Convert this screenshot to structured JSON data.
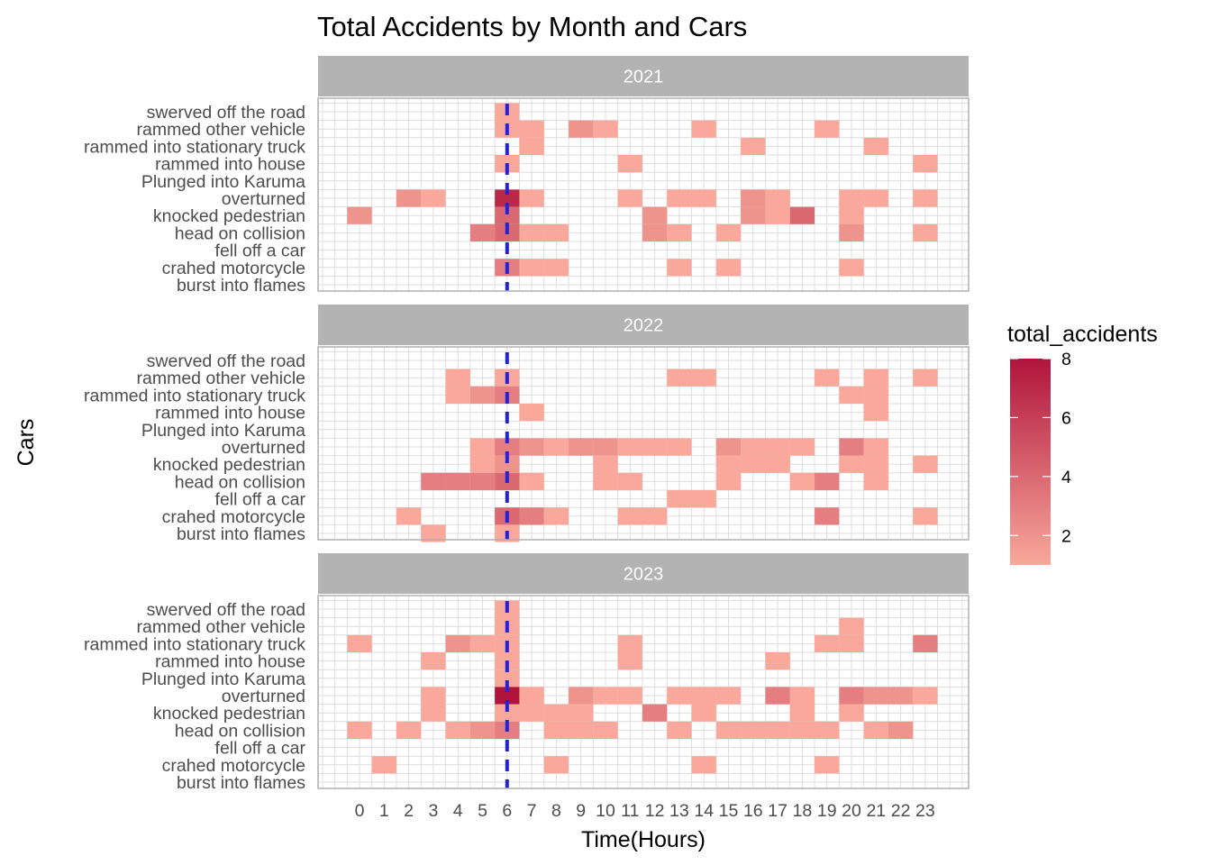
{
  "chart_data": {
    "type": "heatmap",
    "title": "Total Accidents by Month and Cars",
    "xlabel": "Time(Hours)",
    "ylabel": "Cars",
    "x_ticks": [
      "0",
      "1",
      "2",
      "3",
      "4",
      "5",
      "6",
      "7",
      "8",
      "9",
      "10",
      "11",
      "12",
      "13",
      "14",
      "15",
      "16",
      "17",
      "18",
      "19",
      "20",
      "21",
      "22",
      "23"
    ],
    "y_categories": [
      "swerved off the road",
      "rammed other vehicle",
      "rammed into stationary  truck",
      "rammed into house",
      "Plunged into Karuma",
      "overturned",
      "knocked pedestrian",
      "head on collision",
      "fell off a car",
      "crahed motorcycle",
      "burst into flames"
    ],
    "reference_line": {
      "x": 6,
      "color": "#2222dd",
      "style": "dashed"
    },
    "legend": {
      "title": "total_accidents",
      "ticks": [
        2,
        4,
        6,
        8
      ],
      "min": 1,
      "max": 8,
      "color_low": "#f9a89b",
      "color_high": "#b0143c"
    },
    "grid": true,
    "panels": [
      {
        "facet": "2021",
        "cells": [
          {
            "y": "swerved off the road",
            "x": 6,
            "value": 1
          },
          {
            "y": "rammed other vehicle",
            "x": 6,
            "value": 1
          },
          {
            "y": "rammed other vehicle",
            "x": 7,
            "value": 1
          },
          {
            "y": "rammed other vehicle",
            "x": 9,
            "value": 2
          },
          {
            "y": "rammed other vehicle",
            "x": 10,
            "value": 1
          },
          {
            "y": "rammed other vehicle",
            "x": 14,
            "value": 1
          },
          {
            "y": "rammed other vehicle",
            "x": 19,
            "value": 1
          },
          {
            "y": "rammed into stationary  truck",
            "x": 7,
            "value": 1
          },
          {
            "y": "rammed into stationary  truck",
            "x": 16,
            "value": 1
          },
          {
            "y": "rammed into stationary  truck",
            "x": 21,
            "value": 1
          },
          {
            "y": "rammed into house",
            "x": 6,
            "value": 1
          },
          {
            "y": "rammed into house",
            "x": 11,
            "value": 1
          },
          {
            "y": "rammed into house",
            "x": 23,
            "value": 1
          },
          {
            "y": "overturned",
            "x": 2,
            "value": 2
          },
          {
            "y": "overturned",
            "x": 3,
            "value": 1
          },
          {
            "y": "overturned",
            "x": 6,
            "value": 7
          },
          {
            "y": "overturned",
            "x": 7,
            "value": 1
          },
          {
            "y": "overturned",
            "x": 11,
            "value": 1
          },
          {
            "y": "overturned",
            "x": 13,
            "value": 1
          },
          {
            "y": "overturned",
            "x": 14,
            "value": 1
          },
          {
            "y": "overturned",
            "x": 16,
            "value": 2
          },
          {
            "y": "overturned",
            "x": 17,
            "value": 1
          },
          {
            "y": "overturned",
            "x": 20,
            "value": 1
          },
          {
            "y": "overturned",
            "x": 21,
            "value": 1
          },
          {
            "y": "overturned",
            "x": 23,
            "value": 1
          },
          {
            "y": "knocked pedestrian",
            "x": 0,
            "value": 2
          },
          {
            "y": "knocked pedestrian",
            "x": 6,
            "value": 4
          },
          {
            "y": "knocked pedestrian",
            "x": 12,
            "value": 2
          },
          {
            "y": "knocked pedestrian",
            "x": 16,
            "value": 2
          },
          {
            "y": "knocked pedestrian",
            "x": 17,
            "value": 1
          },
          {
            "y": "knocked pedestrian",
            "x": 18,
            "value": 4
          },
          {
            "y": "knocked pedestrian",
            "x": 20,
            "value": 1
          },
          {
            "y": "head on collision",
            "x": 5,
            "value": 3
          },
          {
            "y": "head on collision",
            "x": 6,
            "value": 4
          },
          {
            "y": "head on collision",
            "x": 7,
            "value": 1
          },
          {
            "y": "head on collision",
            "x": 8,
            "value": 1
          },
          {
            "y": "head on collision",
            "x": 12,
            "value": 2
          },
          {
            "y": "head on collision",
            "x": 13,
            "value": 1
          },
          {
            "y": "head on collision",
            "x": 15,
            "value": 1
          },
          {
            "y": "head on collision",
            "x": 20,
            "value": 2
          },
          {
            "y": "head on collision",
            "x": 23,
            "value": 1
          },
          {
            "y": "crahed motorcycle",
            "x": 6,
            "value": 3
          },
          {
            "y": "crahed motorcycle",
            "x": 7,
            "value": 1
          },
          {
            "y": "crahed motorcycle",
            "x": 8,
            "value": 1
          },
          {
            "y": "crahed motorcycle",
            "x": 13,
            "value": 1
          },
          {
            "y": "crahed motorcycle",
            "x": 15,
            "value": 1
          },
          {
            "y": "crahed motorcycle",
            "x": 20,
            "value": 1
          }
        ]
      },
      {
        "facet": "2022",
        "cells": [
          {
            "y": "rammed other vehicle",
            "x": 4,
            "value": 1
          },
          {
            "y": "rammed other vehicle",
            "x": 6,
            "value": 1
          },
          {
            "y": "rammed other vehicle",
            "x": 13,
            "value": 1
          },
          {
            "y": "rammed other vehicle",
            "x": 14,
            "value": 1
          },
          {
            "y": "rammed other vehicle",
            "x": 19,
            "value": 1
          },
          {
            "y": "rammed other vehicle",
            "x": 21,
            "value": 1
          },
          {
            "y": "rammed other vehicle",
            "x": 23,
            "value": 1
          },
          {
            "y": "rammed into stationary  truck",
            "x": 4,
            "value": 1
          },
          {
            "y": "rammed into stationary  truck",
            "x": 5,
            "value": 2
          },
          {
            "y": "rammed into stationary  truck",
            "x": 6,
            "value": 3
          },
          {
            "y": "rammed into stationary  truck",
            "x": 20,
            "value": 1
          },
          {
            "y": "rammed into stationary  truck",
            "x": 21,
            "value": 1
          },
          {
            "y": "rammed into house",
            "x": 7,
            "value": 1
          },
          {
            "y": "rammed into house",
            "x": 21,
            "value": 1
          },
          {
            "y": "overturned",
            "x": 5,
            "value": 1
          },
          {
            "y": "overturned",
            "x": 6,
            "value": 3
          },
          {
            "y": "overturned",
            "x": 7,
            "value": 2
          },
          {
            "y": "overturned",
            "x": 8,
            "value": 1
          },
          {
            "y": "overturned",
            "x": 9,
            "value": 2
          },
          {
            "y": "overturned",
            "x": 10,
            "value": 2
          },
          {
            "y": "overturned",
            "x": 11,
            "value": 1
          },
          {
            "y": "overturned",
            "x": 12,
            "value": 1
          },
          {
            "y": "overturned",
            "x": 13,
            "value": 1
          },
          {
            "y": "overturned",
            "x": 15,
            "value": 2
          },
          {
            "y": "overturned",
            "x": 16,
            "value": 1
          },
          {
            "y": "overturned",
            "x": 17,
            "value": 1
          },
          {
            "y": "overturned",
            "x": 18,
            "value": 1
          },
          {
            "y": "overturned",
            "x": 20,
            "value": 3
          },
          {
            "y": "overturned",
            "x": 21,
            "value": 1
          },
          {
            "y": "knocked pedestrian",
            "x": 5,
            "value": 1
          },
          {
            "y": "knocked pedestrian",
            "x": 6,
            "value": 2
          },
          {
            "y": "knocked pedestrian",
            "x": 10,
            "value": 1
          },
          {
            "y": "knocked pedestrian",
            "x": 15,
            "value": 1
          },
          {
            "y": "knocked pedestrian",
            "x": 16,
            "value": 1
          },
          {
            "y": "knocked pedestrian",
            "x": 17,
            "value": 1
          },
          {
            "y": "knocked pedestrian",
            "x": 20,
            "value": 1
          },
          {
            "y": "knocked pedestrian",
            "x": 21,
            "value": 1
          },
          {
            "y": "knocked pedestrian",
            "x": 23,
            "value": 1
          },
          {
            "y": "head on collision",
            "x": 3,
            "value": 3
          },
          {
            "y": "head on collision",
            "x": 4,
            "value": 3
          },
          {
            "y": "head on collision",
            "x": 5,
            "value": 3
          },
          {
            "y": "head on collision",
            "x": 6,
            "value": 4
          },
          {
            "y": "head on collision",
            "x": 7,
            "value": 1
          },
          {
            "y": "head on collision",
            "x": 10,
            "value": 1
          },
          {
            "y": "head on collision",
            "x": 11,
            "value": 1
          },
          {
            "y": "head on collision",
            "x": 15,
            "value": 1
          },
          {
            "y": "head on collision",
            "x": 18,
            "value": 1
          },
          {
            "y": "head on collision",
            "x": 19,
            "value": 3
          },
          {
            "y": "head on collision",
            "x": 21,
            "value": 1
          },
          {
            "y": "fell off a car",
            "x": 13,
            "value": 1
          },
          {
            "y": "fell off a car",
            "x": 14,
            "value": 1
          },
          {
            "y": "crahed motorcycle",
            "x": 2,
            "value": 1
          },
          {
            "y": "crahed motorcycle",
            "x": 6,
            "value": 4
          },
          {
            "y": "crahed motorcycle",
            "x": 7,
            "value": 3
          },
          {
            "y": "crahed motorcycle",
            "x": 8,
            "value": 1
          },
          {
            "y": "crahed motorcycle",
            "x": 11,
            "value": 1
          },
          {
            "y": "crahed motorcycle",
            "x": 12,
            "value": 1
          },
          {
            "y": "crahed motorcycle",
            "x": 19,
            "value": 3
          },
          {
            "y": "crahed motorcycle",
            "x": 23,
            "value": 1
          },
          {
            "y": "burst into flames",
            "x": 3,
            "value": 1
          },
          {
            "y": "burst into flames",
            "x": 6,
            "value": 1
          }
        ]
      },
      {
        "facet": "2023",
        "cells": [
          {
            "y": "swerved off the road",
            "x": 6,
            "value": 1
          },
          {
            "y": "rammed other vehicle",
            "x": 6,
            "value": 1
          },
          {
            "y": "rammed other vehicle",
            "x": 20,
            "value": 1
          },
          {
            "y": "rammed into stationary  truck",
            "x": 0,
            "value": 1
          },
          {
            "y": "rammed into stationary  truck",
            "x": 4,
            "value": 2
          },
          {
            "y": "rammed into stationary  truck",
            "x": 5,
            "value": 1
          },
          {
            "y": "rammed into stationary  truck",
            "x": 6,
            "value": 1
          },
          {
            "y": "rammed into stationary  truck",
            "x": 11,
            "value": 1
          },
          {
            "y": "rammed into stationary  truck",
            "x": 19,
            "value": 1
          },
          {
            "y": "rammed into stationary  truck",
            "x": 20,
            "value": 1
          },
          {
            "y": "rammed into stationary  truck",
            "x": 23,
            "value": 3
          },
          {
            "y": "rammed into house",
            "x": 3,
            "value": 1
          },
          {
            "y": "rammed into house",
            "x": 6,
            "value": 1
          },
          {
            "y": "rammed into house",
            "x": 11,
            "value": 1
          },
          {
            "y": "rammed into house",
            "x": 17,
            "value": 1
          },
          {
            "y": "Plunged into Karuma",
            "x": 6,
            "value": 1
          },
          {
            "y": "overturned",
            "x": 3,
            "value": 1
          },
          {
            "y": "overturned",
            "x": 6,
            "value": 8
          },
          {
            "y": "overturned",
            "x": 7,
            "value": 1
          },
          {
            "y": "overturned",
            "x": 9,
            "value": 2
          },
          {
            "y": "overturned",
            "x": 10,
            "value": 1
          },
          {
            "y": "overturned",
            "x": 11,
            "value": 1
          },
          {
            "y": "overturned",
            "x": 13,
            "value": 1
          },
          {
            "y": "overturned",
            "x": 14,
            "value": 1
          },
          {
            "y": "overturned",
            "x": 15,
            "value": 1
          },
          {
            "y": "overturned",
            "x": 17,
            "value": 3
          },
          {
            "y": "overturned",
            "x": 18,
            "value": 1
          },
          {
            "y": "overturned",
            "x": 20,
            "value": 3
          },
          {
            "y": "overturned",
            "x": 21,
            "value": 2
          },
          {
            "y": "overturned",
            "x": 22,
            "value": 2
          },
          {
            "y": "overturned",
            "x": 23,
            "value": 1
          },
          {
            "y": "knocked pedestrian",
            "x": 3,
            "value": 1
          },
          {
            "y": "knocked pedestrian",
            "x": 6,
            "value": 1
          },
          {
            "y": "knocked pedestrian",
            "x": 7,
            "value": 1
          },
          {
            "y": "knocked pedestrian",
            "x": 8,
            "value": 1
          },
          {
            "y": "knocked pedestrian",
            "x": 9,
            "value": 1
          },
          {
            "y": "knocked pedestrian",
            "x": 12,
            "value": 3
          },
          {
            "y": "knocked pedestrian",
            "x": 14,
            "value": 1
          },
          {
            "y": "knocked pedestrian",
            "x": 18,
            "value": 1
          },
          {
            "y": "knocked pedestrian",
            "x": 20,
            "value": 1
          },
          {
            "y": "head on collision",
            "x": 0,
            "value": 1
          },
          {
            "y": "head on collision",
            "x": 2,
            "value": 1
          },
          {
            "y": "head on collision",
            "x": 4,
            "value": 1
          },
          {
            "y": "head on collision",
            "x": 5,
            "value": 2
          },
          {
            "y": "head on collision",
            "x": 6,
            "value": 3
          },
          {
            "y": "head on collision",
            "x": 8,
            "value": 1
          },
          {
            "y": "head on collision",
            "x": 9,
            "value": 1
          },
          {
            "y": "head on collision",
            "x": 10,
            "value": 1
          },
          {
            "y": "head on collision",
            "x": 13,
            "value": 1
          },
          {
            "y": "head on collision",
            "x": 15,
            "value": 1
          },
          {
            "y": "head on collision",
            "x": 16,
            "value": 1
          },
          {
            "y": "head on collision",
            "x": 17,
            "value": 1
          },
          {
            "y": "head on collision",
            "x": 18,
            "value": 1
          },
          {
            "y": "head on collision",
            "x": 19,
            "value": 1
          },
          {
            "y": "head on collision",
            "x": 21,
            "value": 1
          },
          {
            "y": "head on collision",
            "x": 22,
            "value": 2
          },
          {
            "y": "crahed motorcycle",
            "x": 1,
            "value": 1
          },
          {
            "y": "crahed motorcycle",
            "x": 8,
            "value": 1
          },
          {
            "y": "crahed motorcycle",
            "x": 14,
            "value": 1
          },
          {
            "y": "crahed motorcycle",
            "x": 19,
            "value": 1
          }
        ]
      }
    ]
  }
}
